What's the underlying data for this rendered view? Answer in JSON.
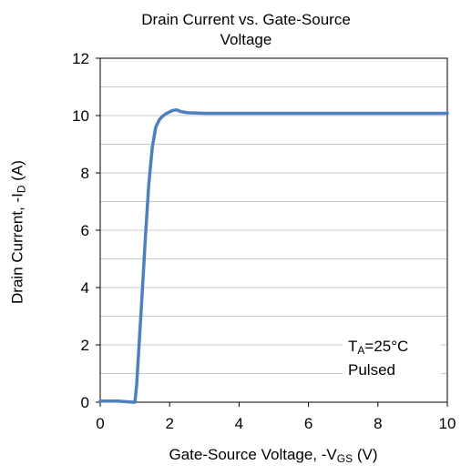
{
  "chart_data": {
    "type": "line",
    "title_line1": "Drain Current vs. Gate-Source",
    "title_line2": "Voltage",
    "ylabel": {
      "prefix": "Drain Current, -I",
      "sub": "D",
      "suffix": " (A)"
    },
    "xlabel": {
      "prefix": "Gate-Source Voltage, -V",
      "sub": "GS",
      "suffix": " (V)"
    },
    "xlim": [
      0,
      10
    ],
    "ylim": [
      0,
      12
    ],
    "x_ticks": [
      "0",
      "2",
      "4",
      "6",
      "8",
      "10"
    ],
    "y_ticks": [
      "0",
      "2",
      "4",
      "6",
      "8",
      "10",
      "12"
    ],
    "grid": true,
    "annotation": {
      "line1_prefix": "T",
      "line1_sub": "A",
      "line1_suffix": "=25°C",
      "line2": "Pulsed"
    },
    "series": [
      {
        "color": "#4f7fbf",
        "x": [
          0,
          0.2,
          0.5,
          0.95,
          1.0,
          1.05,
          1.1,
          1.2,
          1.3,
          1.4,
          1.5,
          1.6,
          1.7,
          1.8,
          1.9,
          2.0,
          2.1,
          2.2,
          2.3,
          2.5,
          3.0,
          10.0
        ],
        "y": [
          0.04,
          0.04,
          0.04,
          0.0,
          0.0,
          0.6,
          1.6,
          3.6,
          5.7,
          7.6,
          8.9,
          9.6,
          9.85,
          9.98,
          10.07,
          10.13,
          10.18,
          10.2,
          10.15,
          10.1,
          10.08,
          10.08
        ]
      }
    ]
  }
}
